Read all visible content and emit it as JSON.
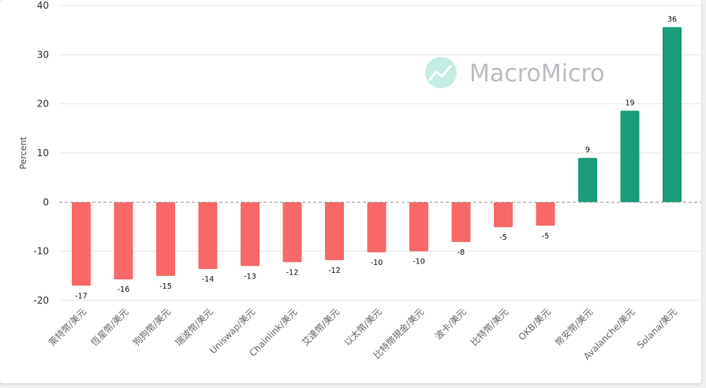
{
  "chart_data": {
    "type": "bar",
    "ylabel": "Percent",
    "ylim": [
      -20,
      40
    ],
    "yticks": [
      -20,
      -10,
      0,
      10,
      20,
      30,
      40
    ],
    "grid": true,
    "legend": "none",
    "watermark": "MacroMicro",
    "categories": [
      "萊特幣/美元",
      "恆星幣/美元",
      "狗狗幣/美元",
      "瑞波幣/美元",
      "Uniswap/美元",
      "Chainlink/美元",
      "艾達幣/美元",
      "以太幣/美元",
      "比特幣現金/美元",
      "波卡/美元",
      "比特幣/美元",
      "OKB/美元",
      "幣安幣/美元",
      "Avalanche/美元",
      "Solana/美元"
    ],
    "values": [
      -17,
      -15.7,
      -15,
      -13.6,
      -13,
      -12.2,
      -11.8,
      -10.2,
      -10,
      -8.1,
      -5.1,
      -4.8,
      9,
      18.6,
      35.6
    ],
    "data_labels": [
      "-17",
      "-16",
      "-15",
      "-14",
      "-13",
      "-12",
      "-12",
      "-10",
      "-10",
      "-8",
      "-5",
      "-5",
      "9",
      "19",
      "36"
    ],
    "colors": {
      "negative": "#f96868",
      "positive": "#1a9c7b",
      "zero_line": "#999999",
      "grid": "#e6e6e6"
    }
  }
}
